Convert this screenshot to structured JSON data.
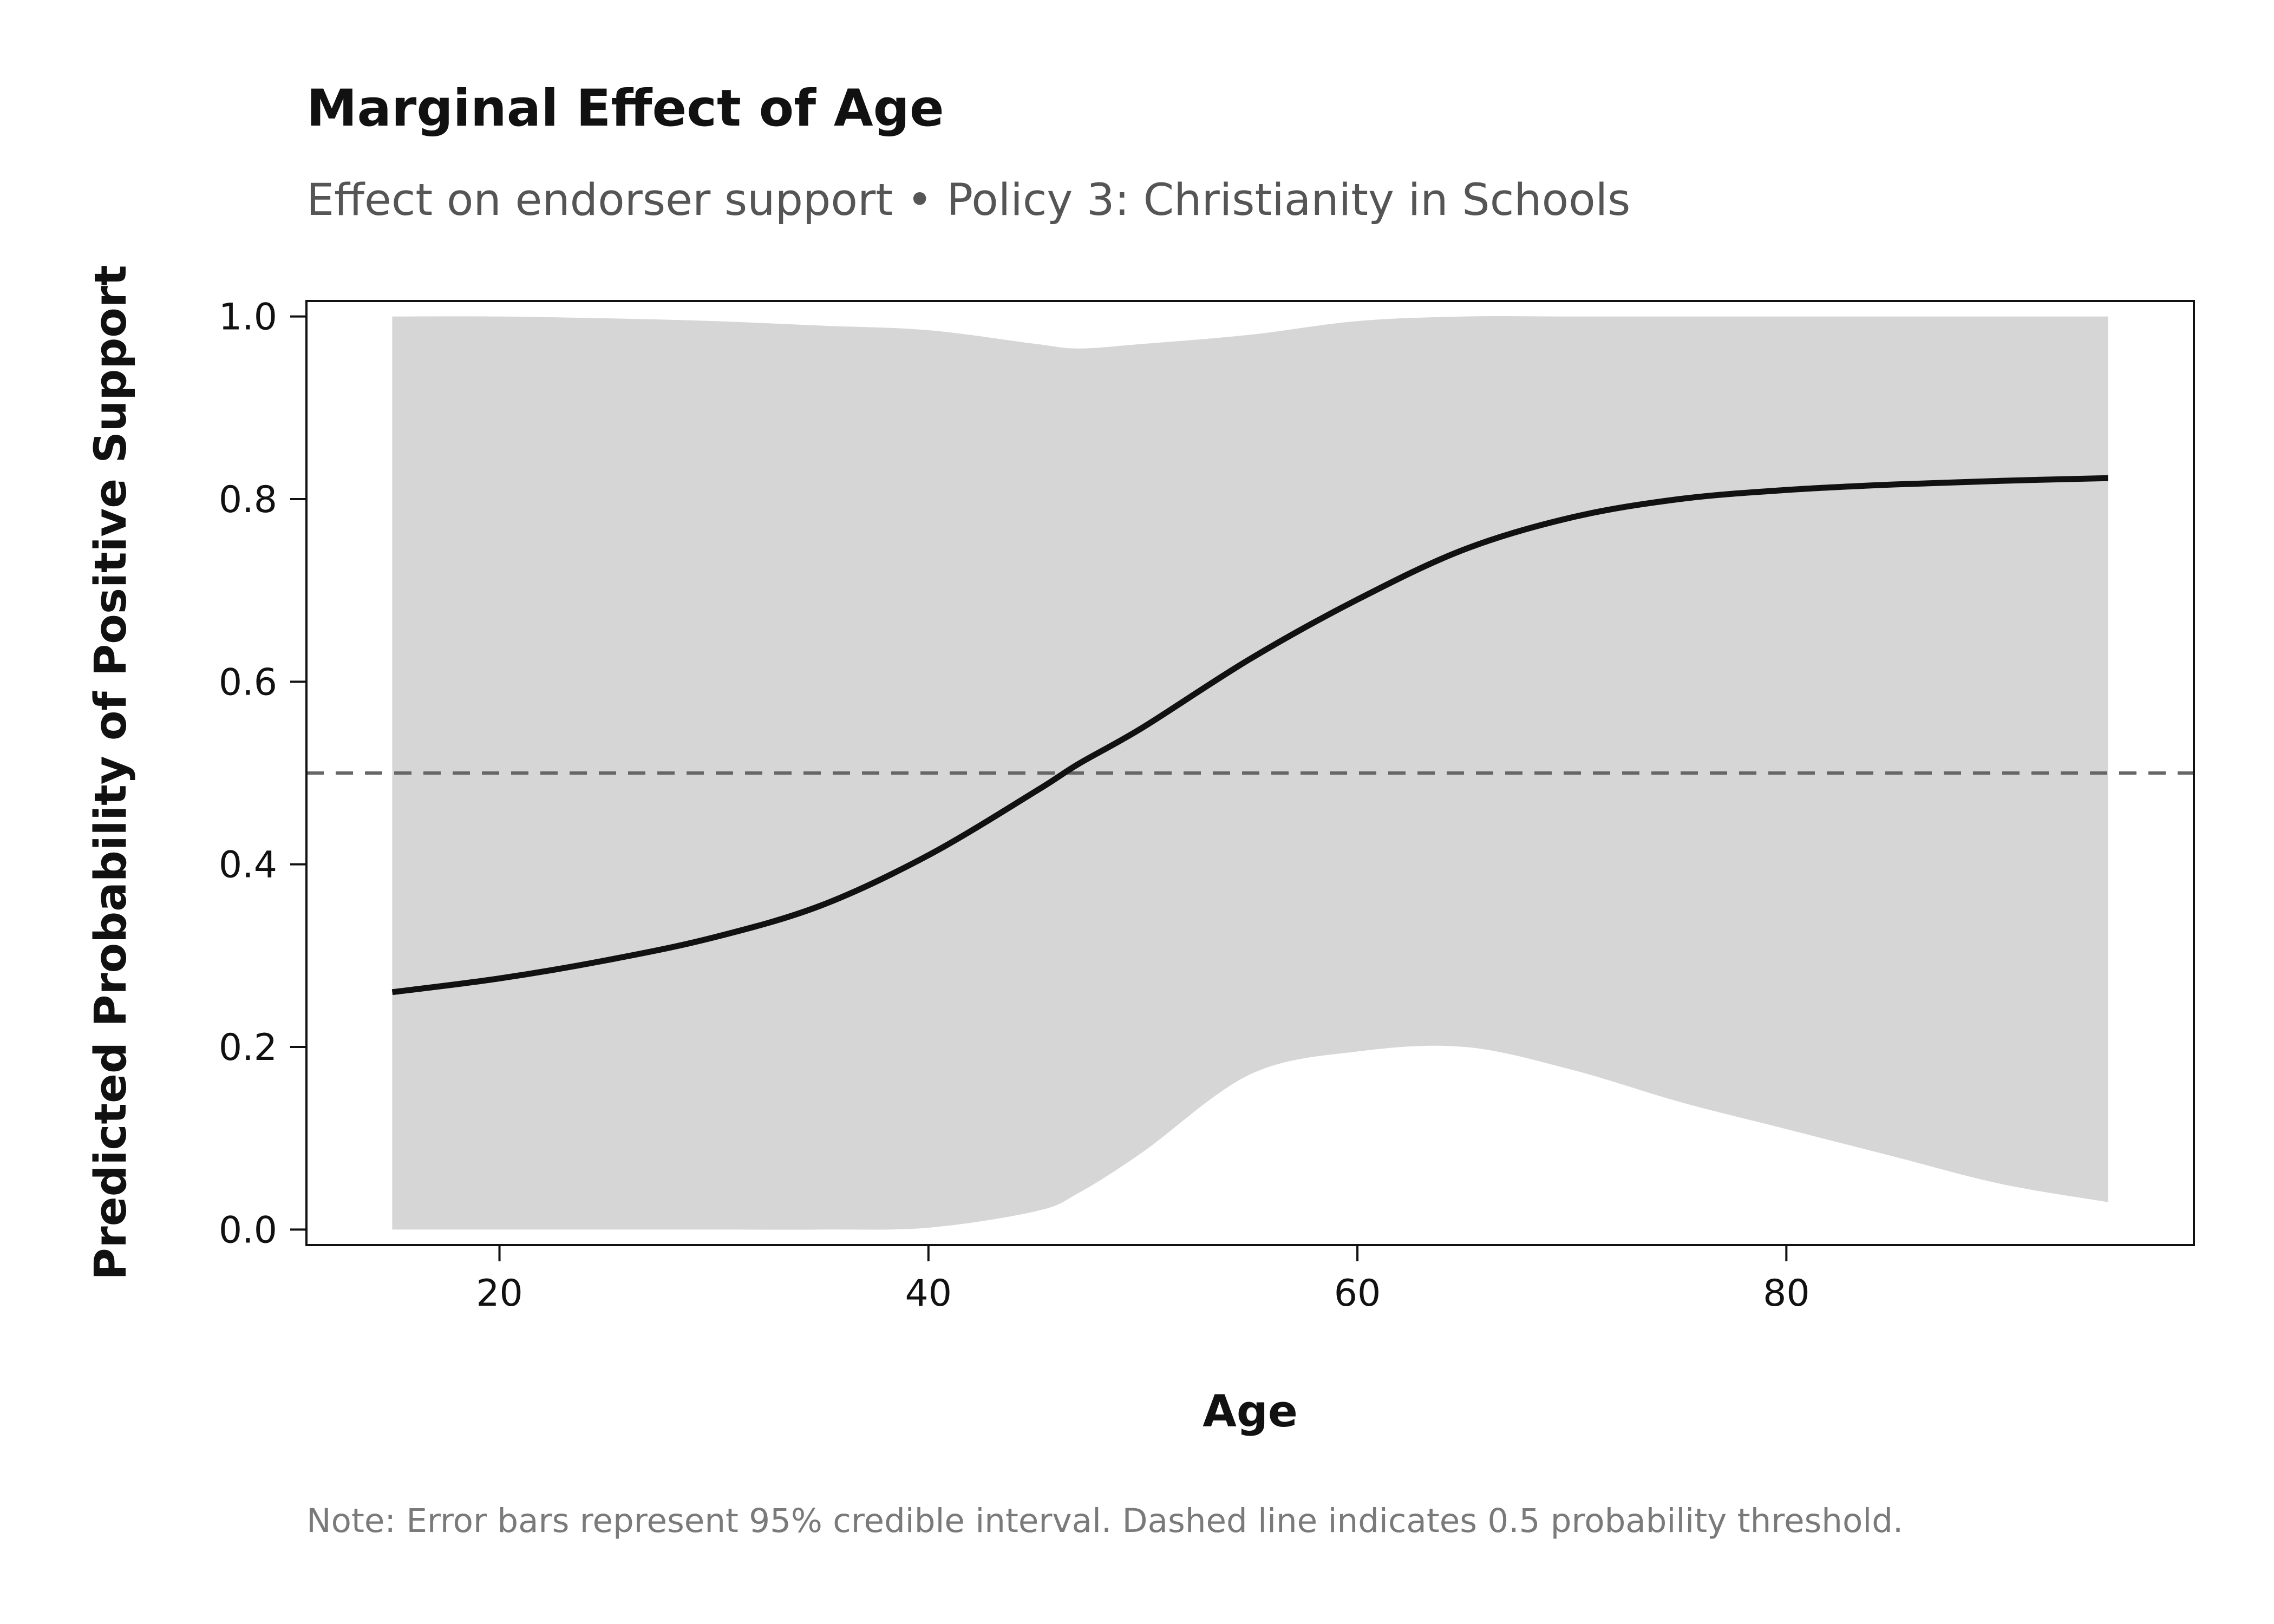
{
  "chart_data": {
    "type": "line",
    "title": "Marginal Effect of Age",
    "subtitle": "Effect on endorser support • Policy 3: Christianity in Schools",
    "xlabel": "Age",
    "ylabel": "Predicted Probability of Positive Support",
    "note": "Note: Error bars represent 95% credible interval. Dashed line indicates 0.5 probability threshold.",
    "xlim": [
      11,
      99
    ],
    "ylim": [
      -0.017,
      1.017
    ],
    "xticks": [
      20,
      40,
      60,
      80
    ],
    "xtick_labels": [
      "20",
      "40",
      "60",
      "80"
    ],
    "yticks": [
      0.0,
      0.2,
      0.4,
      0.6,
      0.8,
      1.0
    ],
    "ytick_labels": [
      "0.0",
      "0.2",
      "0.4",
      "0.6",
      "0.8",
      "1.0"
    ],
    "grid": false,
    "reference_line": {
      "y": 0.5,
      "style": "dashed",
      "color": "#666666"
    },
    "colors": {
      "line": "#111111",
      "band": "#d6d6d6",
      "reference": "#666666"
    },
    "x": [
      15,
      20,
      25,
      30,
      35,
      40,
      45,
      47,
      50,
      55,
      60,
      65,
      70,
      75,
      80,
      85,
      90,
      95
    ],
    "series": [
      {
        "values": [
          0.26,
          0.275,
          0.295,
          0.32,
          0.355,
          0.41,
          0.48,
          0.51,
          0.55,
          0.625,
          0.69,
          0.745,
          0.78,
          0.8,
          0.81,
          0.816,
          0.82,
          0.823
        ]
      }
    ],
    "interval": {
      "upper": [
        1.0,
        1.0,
        0.998,
        0.995,
        0.99,
        0.985,
        0.97,
        0.965,
        0.97,
        0.98,
        0.995,
        1.0,
        1.0,
        1.0,
        1.0,
        1.0,
        1.0,
        1.0
      ],
      "lower": [
        0.0,
        0.0,
        0.0,
        0.0,
        0.0,
        0.002,
        0.02,
        0.04,
        0.085,
        0.17,
        0.195,
        0.2,
        0.175,
        0.14,
        0.11,
        0.08,
        0.05,
        0.03
      ]
    }
  }
}
